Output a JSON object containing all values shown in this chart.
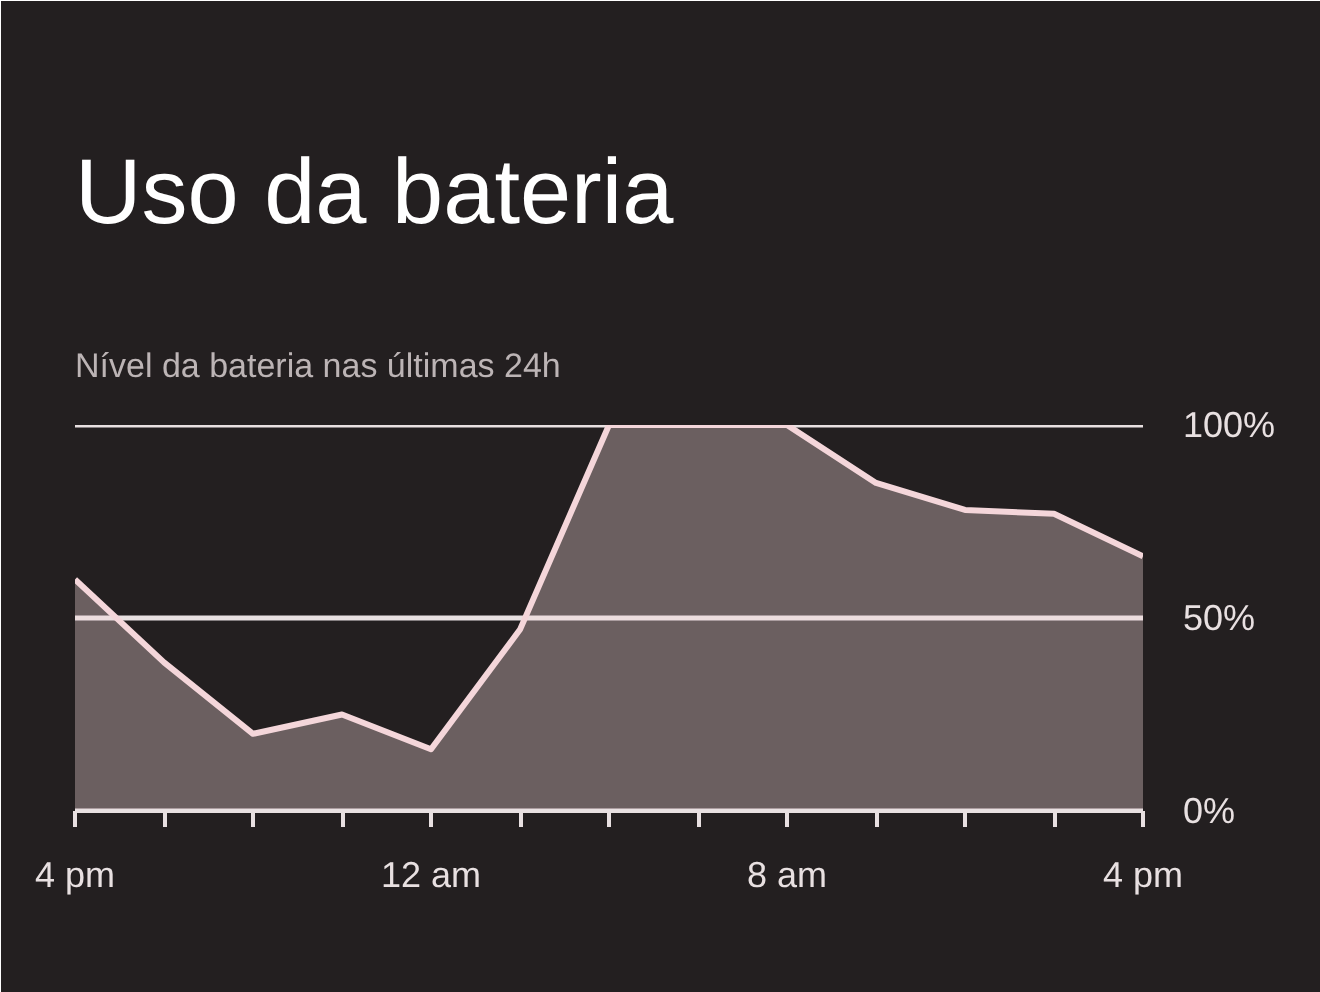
{
  "chart_data": {
    "type": "area",
    "title": "Uso da bateria",
    "subtitle": "Nível da bateria nas últimas 24h",
    "categories": [
      "4 pm",
      null,
      null,
      null,
      "12 am",
      null,
      null,
      null,
      "8 am",
      null,
      null,
      null,
      "4 pm"
    ],
    "series": [
      {
        "color": "#f4d6da",
        "values": [
          60,
          38.5,
          20,
          25,
          16,
          47,
          100,
          100,
          100,
          85,
          78,
          77,
          66
        ]
      }
    ],
    "ylim": [
      0,
      100
    ],
    "yticks": [
      {
        "value": 0,
        "label": "0%"
      },
      {
        "value": 50,
        "label": "50%"
      },
      {
        "value": 100,
        "label": "100%"
      }
    ],
    "grid": "y"
  }
}
